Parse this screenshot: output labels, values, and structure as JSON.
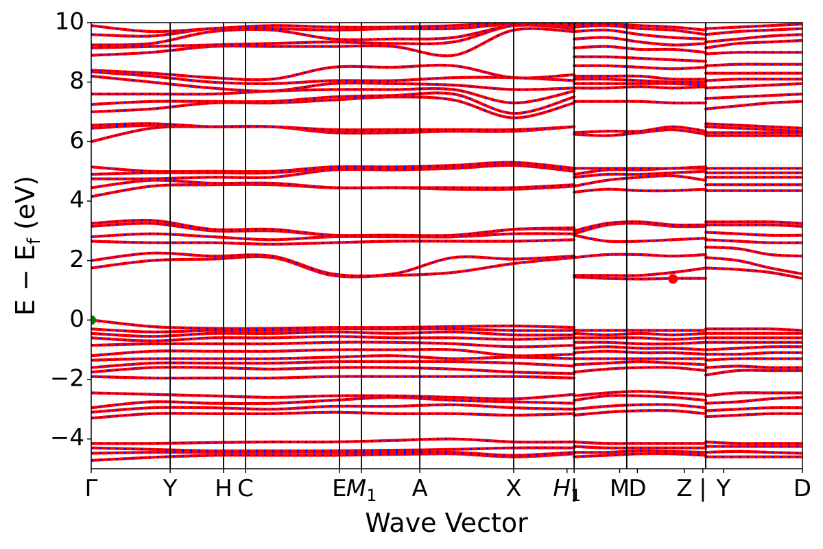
{
  "chart_data": {
    "type": "line",
    "title": "",
    "xlabel": "Wave Vector",
    "ylabel_main": "E − E",
    "ylabel_sub": "f",
    "ylabel_unit": " (eV)",
    "ylim": [
      -5,
      10
    ],
    "yticks": [
      -4,
      -2,
      0,
      2,
      4,
      6,
      8,
      10
    ],
    "ytick_labels": [
      "−4",
      "−2",
      "0",
      "2",
      "4",
      "6",
      "8",
      "10"
    ],
    "xlim": [
      0,
      1
    ],
    "high_symmetry_points": [
      {
        "x": 0.0,
        "label": "Γ",
        "sub": ""
      },
      {
        "x": 0.111,
        "label": "Y",
        "sub": ""
      },
      {
        "x": 0.186,
        "label": "H",
        "sub": ""
      },
      {
        "x": 0.217,
        "label": "C",
        "sub": ""
      },
      {
        "x": 0.349,
        "label": "E",
        "sub": ""
      },
      {
        "x": 0.38,
        "label": "M",
        "sub": "1"
      },
      {
        "x": 0.462,
        "label": "A",
        "sub": ""
      },
      {
        "x": 0.594,
        "label": "X",
        "sub": ""
      },
      {
        "x": 0.669,
        "label": "H",
        "sub": "1"
      },
      {
        "x": 0.679,
        "label": "|",
        "sub": ""
      },
      {
        "x": 0.743,
        "label": "M",
        "sub": ""
      },
      {
        "x": 0.768,
        "label": "D",
        "sub": ""
      },
      {
        "x": 0.834,
        "label": "Z",
        "sub": ""
      },
      {
        "x": 0.86,
        "label": "|",
        "sub": ""
      },
      {
        "x": 0.889,
        "label": "Y",
        "sub": ""
      },
      {
        "x": 1.0,
        "label": "D",
        "sub": ""
      }
    ],
    "segment_boundaries": [
      0.111,
      0.186,
      0.217,
      0.349,
      0.38,
      0.462,
      0.594,
      0.679,
      0.753,
      0.864
    ],
    "segments": [
      {
        "x_start": 0.0,
        "x_end": 0.679,
        "bands": [
          [
            -4.72,
            -4.62,
            -4.55,
            -4.55,
            -4.55,
            -4.52,
            -4.5,
            -4.6,
            -4.5
          ],
          [
            -4.48,
            -4.45,
            -4.45,
            -4.45,
            -4.45,
            -4.45,
            -4.45,
            -4.55,
            -4.45
          ],
          [
            -4.3,
            -4.35,
            -4.4,
            -4.4,
            -4.4,
            -4.38,
            -4.35,
            -4.3,
            -4.3
          ],
          [
            -4.15,
            -4.15,
            -4.12,
            -4.1,
            -4.1,
            -4.05,
            -4.0,
            -4.1,
            -4.1
          ],
          [
            -3.3,
            -3.15,
            -3.15,
            -3.15,
            -3.1,
            -3.15,
            -3.15,
            -3.2,
            -3.15
          ],
          [
            -3.1,
            -2.95,
            -2.95,
            -3.0,
            -2.9,
            -2.9,
            -2.85,
            -2.95,
            -3.0
          ],
          [
            -2.95,
            -2.75,
            -2.8,
            -2.8,
            -2.7,
            -2.6,
            -2.7,
            -2.75,
            -2.8
          ],
          [
            -2.45,
            -2.5,
            -2.55,
            -2.6,
            -2.55,
            -2.55,
            -2.6,
            -2.65,
            -2.5
          ],
          [
            -1.9,
            -1.95,
            -1.95,
            -1.95,
            -1.9,
            -1.9,
            -1.9,
            -1.9,
            -1.95
          ],
          [
            -1.75,
            -1.6,
            -1.6,
            -1.65,
            -1.6,
            -1.6,
            -1.65,
            -1.75,
            -1.8
          ],
          [
            -1.6,
            -1.45,
            -1.45,
            -1.45,
            -1.4,
            -1.4,
            -1.4,
            -1.45,
            -1.55
          ],
          [
            -1.35,
            -1.3,
            -1.3,
            -1.3,
            -1.25,
            -1.2,
            -1.3,
            -1.25,
            -1.3
          ],
          [
            -1.2,
            -1.05,
            -1.05,
            -1.05,
            -1.0,
            -1.0,
            -1.0,
            -1.2,
            -1.15
          ],
          [
            -0.85,
            -0.8,
            -0.8,
            -0.8,
            -0.75,
            -0.75,
            -0.8,
            -0.9,
            -0.85
          ],
          [
            -0.6,
            -0.7,
            -0.6,
            -0.6,
            -0.55,
            -0.6,
            -0.6,
            -0.65,
            -0.6
          ],
          [
            -0.45,
            -0.55,
            -0.45,
            -0.45,
            -0.4,
            -0.45,
            -0.4,
            -0.5,
            -0.5
          ],
          [
            -0.3,
            -0.4,
            -0.35,
            -0.35,
            -0.3,
            -0.3,
            -0.3,
            -0.35,
            -0.35
          ],
          [
            0.0,
            -0.22,
            -0.28,
            -0.28,
            -0.25,
            -0.25,
            -0.22,
            -0.2,
            -0.25
          ],
          [
            1.75,
            2.0,
            2.05,
            2.1,
            1.5,
            1.5,
            1.6,
            1.9,
            2.1
          ],
          [
            2.0,
            2.25,
            2.15,
            2.15,
            1.55,
            1.55,
            2.1,
            2.05,
            2.15
          ],
          [
            2.65,
            2.6,
            2.6,
            2.55,
            2.6,
            2.65,
            2.65,
            2.65,
            2.7
          ],
          [
            2.8,
            2.9,
            2.8,
            2.7,
            2.8,
            2.8,
            2.8,
            2.9,
            2.9
          ],
          [
            3.15,
            3.25,
            3.0,
            3.0,
            2.85,
            2.85,
            2.8,
            3.05,
            3.05
          ],
          [
            3.25,
            3.35,
            3.05,
            3.05,
            2.85,
            2.85,
            2.85,
            3.05,
            3.1
          ],
          [
            4.15,
            4.5,
            4.55,
            4.55,
            4.45,
            4.45,
            4.4,
            4.4,
            4.5
          ],
          [
            4.45,
            4.7,
            4.6,
            4.6,
            4.45,
            4.45,
            4.45,
            4.45,
            4.55
          ],
          [
            4.75,
            4.75,
            4.8,
            4.8,
            5.05,
            5.05,
            5.1,
            5.2,
            5.0
          ],
          [
            4.9,
            4.95,
            4.95,
            4.95,
            5.1,
            5.1,
            5.15,
            5.25,
            5.05
          ],
          [
            5.15,
            5.0,
            5.0,
            5.0,
            5.15,
            5.15,
            5.2,
            5.3,
            5.1
          ],
          [
            6.0,
            6.45,
            6.5,
            6.5,
            6.3,
            6.3,
            6.35,
            6.35,
            6.5
          ],
          [
            6.45,
            6.55,
            6.5,
            6.5,
            6.35,
            6.35,
            6.35,
            6.35,
            6.5
          ],
          [
            6.55,
            6.6,
            6.5,
            6.5,
            6.4,
            6.4,
            6.4,
            6.4,
            6.5
          ],
          [
            7.0,
            7.1,
            7.3,
            7.3,
            7.4,
            7.5,
            7.4,
            6.8,
            7.3
          ],
          [
            7.25,
            7.35,
            7.35,
            7.35,
            7.5,
            7.55,
            7.6,
            6.95,
            7.5
          ],
          [
            7.6,
            7.6,
            7.6,
            7.7,
            7.75,
            7.75,
            7.75,
            7.3,
            7.7
          ],
          [
            8.2,
            8.0,
            7.8,
            7.7,
            7.95,
            7.95,
            7.9,
            7.75,
            7.8
          ],
          [
            8.35,
            8.2,
            8.0,
            7.95,
            8.05,
            8.05,
            8.15,
            8.15,
            8.05
          ],
          [
            8.4,
            8.3,
            8.15,
            8.1,
            8.5,
            8.5,
            8.55,
            8.15,
            8.25
          ],
          [
            8.9,
            9.0,
            9.2,
            9.2,
            9.2,
            9.2,
            8.9,
            9.75,
            9.7
          ],
          [
            9.15,
            9.2,
            9.25,
            9.3,
            9.35,
            9.3,
            9.35,
            9.9,
            9.8
          ],
          [
            9.25,
            9.3,
            9.7,
            9.75,
            9.45,
            9.45,
            9.5,
            9.9,
            9.85
          ],
          [
            9.6,
            9.55,
            9.8,
            9.8,
            9.75,
            9.8,
            9.8,
            9.95,
            9.9
          ],
          [
            9.9,
            9.7,
            9.8,
            9.9,
            9.85,
            9.85,
            9.9,
            10.0,
            9.95
          ]
        ]
      },
      {
        "x_start": 0.679,
        "x_end": 0.864,
        "bands": [
          [
            -4.6,
            -4.55,
            -4.5,
            -4.5,
            -4.55
          ],
          [
            -4.45,
            -4.45,
            -4.4,
            -4.42,
            -4.45
          ],
          [
            -4.25,
            -4.3,
            -4.3,
            -4.3,
            -4.3
          ],
          [
            -4.1,
            -4.15,
            -4.15,
            -4.15,
            -4.15
          ],
          [
            -3.2,
            -3.1,
            -3.05,
            -3.05,
            -3.15
          ],
          [
            -3.0,
            -2.9,
            -2.85,
            -2.85,
            -2.95
          ],
          [
            -2.7,
            -2.55,
            -2.55,
            -2.6,
            -2.7
          ],
          [
            -2.55,
            -2.45,
            -2.4,
            -2.45,
            -2.5
          ],
          [
            -1.75,
            -1.65,
            -1.6,
            -1.6,
            -1.7
          ],
          [
            -1.5,
            -1.45,
            -1.4,
            -1.45,
            -1.5
          ],
          [
            -1.3,
            -1.3,
            -1.3,
            -1.3,
            -1.3
          ],
          [
            -1.1,
            -1.05,
            -1.1,
            -1.1,
            -1.15
          ],
          [
            -0.95,
            -0.9,
            -0.95,
            -0.95,
            -1.0
          ],
          [
            -0.75,
            -0.75,
            -0.8,
            -0.8,
            -0.75
          ],
          [
            -0.6,
            -0.6,
            -0.6,
            -0.65,
            -0.6
          ],
          [
            -0.45,
            -0.5,
            -0.45,
            -0.5,
            -0.45
          ],
          [
            -0.35,
            -0.35,
            -0.35,
            -0.35,
            -0.35
          ],
          [
            1.45,
            1.4,
            1.38,
            1.4,
            1.4
          ],
          [
            1.5,
            1.5,
            1.5,
            1.6,
            1.75
          ],
          [
            2.1,
            2.2,
            2.2,
            2.15,
            2.2
          ],
          [
            2.85,
            2.65,
            2.65,
            2.7,
            2.75
          ],
          [
            2.9,
            3.2,
            3.25,
            3.15,
            3.15
          ],
          [
            3.0,
            3.25,
            3.3,
            3.2,
            3.2
          ],
          [
            4.3,
            4.4,
            4.35,
            4.35,
            4.4
          ],
          [
            4.5,
            4.7,
            4.8,
            4.85,
            4.7
          ],
          [
            4.8,
            4.9,
            4.9,
            4.95,
            5.0
          ],
          [
            4.9,
            5.05,
            5.05,
            5.1,
            5.1
          ],
          [
            5.1,
            5.1,
            5.1,
            5.1,
            5.15
          ],
          [
            6.25,
            6.2,
            6.3,
            6.4,
            6.25
          ],
          [
            6.3,
            6.35,
            6.35,
            6.5,
            6.35
          ],
          [
            7.35,
            7.35,
            7.35,
            7.3,
            7.3
          ],
          [
            7.8,
            7.8,
            7.85,
            7.8,
            7.85
          ],
          [
            7.95,
            7.95,
            7.95,
            7.95,
            7.9
          ],
          [
            8.1,
            8.1,
            8.05,
            8.0,
            8.0
          ],
          [
            8.2,
            8.2,
            8.2,
            8.1,
            8.1
          ],
          [
            8.55,
            8.55,
            8.5,
            8.45,
            8.5
          ],
          [
            8.85,
            8.85,
            8.8,
            8.75,
            8.7
          ],
          [
            9.15,
            9.2,
            9.1,
            9.1,
            9.0
          ],
          [
            9.45,
            9.5,
            9.35,
            9.25,
            9.3
          ],
          [
            9.7,
            9.75,
            9.6,
            9.5,
            9.45
          ],
          [
            9.85,
            9.9,
            9.8,
            9.75,
            9.6
          ],
          [
            9.95,
            9.95,
            9.9,
            9.85,
            9.75
          ]
        ]
      },
      {
        "x_start": 0.864,
        "x_end": 1.0,
        "bands": [
          [
            -4.6,
            -4.6,
            -4.6,
            -4.6
          ],
          [
            -4.45,
            -4.42,
            -4.45,
            -4.48
          ],
          [
            -4.25,
            -4.25,
            -4.25,
            -4.25
          ],
          [
            -4.1,
            -4.15,
            -4.15,
            -4.15
          ],
          [
            -3.25,
            -3.2,
            -3.15,
            -3.15
          ],
          [
            -3.05,
            -3.0,
            -2.95,
            -2.95
          ],
          [
            -2.8,
            -2.75,
            -2.65,
            -2.6
          ],
          [
            -2.55,
            -2.45,
            -2.45,
            -2.45
          ],
          [
            -1.85,
            -1.7,
            -1.7,
            -1.7
          ],
          [
            -1.6,
            -1.55,
            -1.6,
            -1.6
          ],
          [
            -1.35,
            -1.3,
            -1.3,
            -1.3
          ],
          [
            -1.15,
            -1.15,
            -1.1,
            -1.1
          ],
          [
            -1.0,
            -0.95,
            -0.9,
            -0.9
          ],
          [
            -0.75,
            -0.75,
            -0.75,
            -0.75
          ],
          [
            -0.6,
            -0.6,
            -0.6,
            -0.6
          ],
          [
            -0.45,
            -0.45,
            -0.45,
            -0.45
          ],
          [
            -0.3,
            -0.3,
            -0.3,
            -0.35
          ],
          [
            1.75,
            1.7,
            1.6,
            1.4
          ],
          [
            2.1,
            2.0,
            1.75,
            1.55
          ],
          [
            2.45,
            2.4,
            2.2,
            2.15
          ],
          [
            2.7,
            2.65,
            2.6,
            2.6
          ],
          [
            2.95,
            2.9,
            2.85,
            2.85
          ],
          [
            3.2,
            3.2,
            3.2,
            3.15
          ],
          [
            3.3,
            3.3,
            3.3,
            3.25
          ],
          [
            4.35,
            4.35,
            4.35,
            4.35
          ],
          [
            4.55,
            4.55,
            4.55,
            4.55
          ],
          [
            4.8,
            4.8,
            4.8,
            4.8
          ],
          [
            4.95,
            4.95,
            4.95,
            4.95
          ],
          [
            5.1,
            5.1,
            5.1,
            5.1
          ],
          [
            6.2,
            6.2,
            6.2,
            6.2
          ],
          [
            6.3,
            6.3,
            6.3,
            6.3
          ],
          [
            6.5,
            6.45,
            6.4,
            6.35
          ],
          [
            6.6,
            6.55,
            6.5,
            6.45
          ],
          [
            7.1,
            7.2,
            7.3,
            7.35
          ],
          [
            7.45,
            7.5,
            7.55,
            7.6
          ],
          [
            7.8,
            7.85,
            7.9,
            7.95
          ],
          [
            8.05,
            8.1,
            8.1,
            8.1
          ],
          [
            8.3,
            8.3,
            8.3,
            8.3
          ],
          [
            8.55,
            8.6,
            8.6,
            8.6
          ],
          [
            8.95,
            9.0,
            9.0,
            9.0
          ],
          [
            9.15,
            9.3,
            9.35,
            9.4
          ],
          [
            9.35,
            9.45,
            9.55,
            9.6
          ],
          [
            9.6,
            9.7,
            9.75,
            9.8
          ],
          [
            9.8,
            9.85,
            9.9,
            9.95
          ]
        ]
      }
    ],
    "band_colors": {
      "line": "#ff0000",
      "overlay": "#0000ff"
    },
    "markers": [
      {
        "x": 0.0,
        "y": 0.0,
        "color": "#008000",
        "role": "vbm"
      },
      {
        "x": 0.818,
        "y": 1.38,
        "color": "#ff0000",
        "role": "cbm"
      }
    ]
  }
}
